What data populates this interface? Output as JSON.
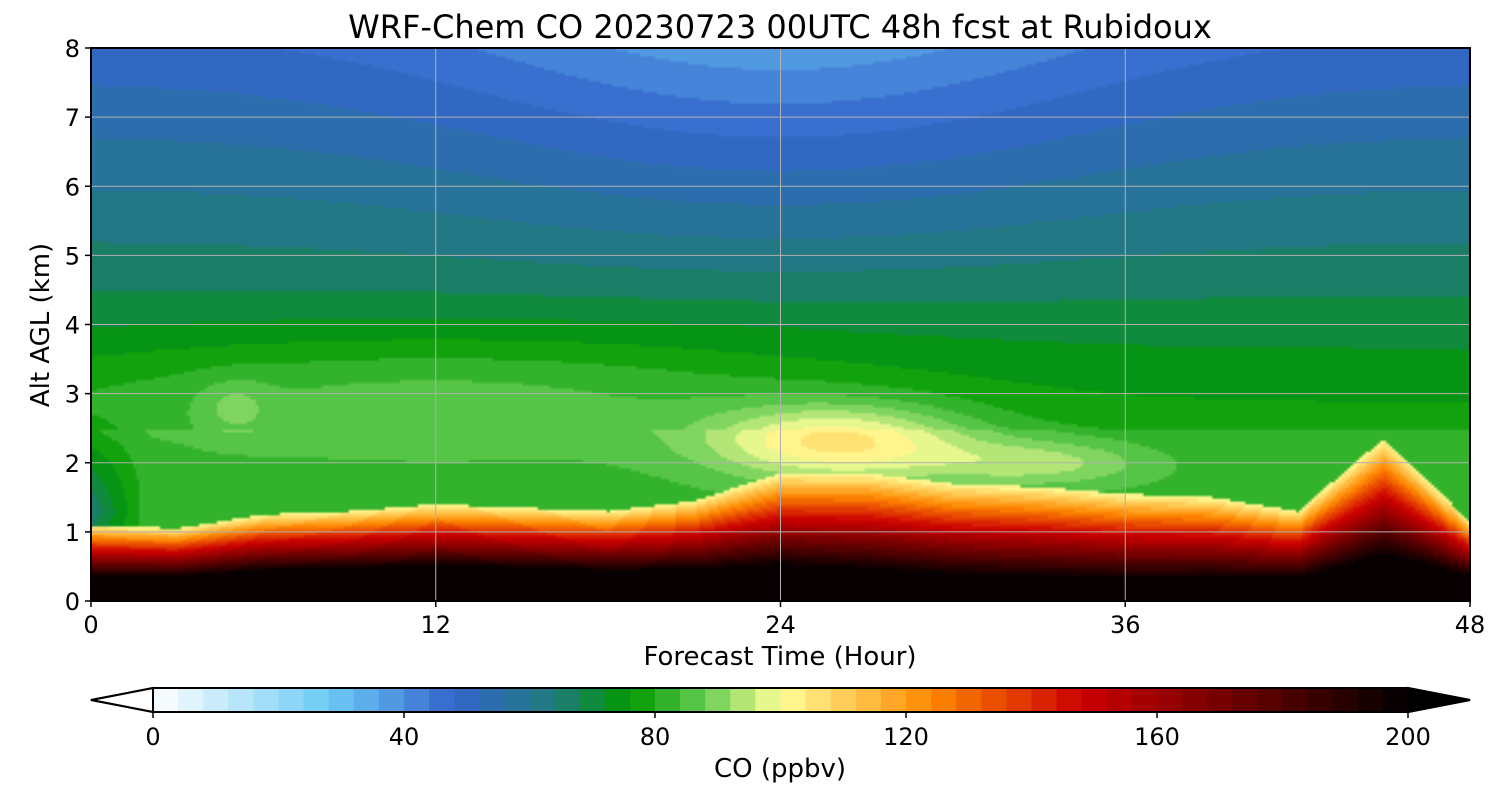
{
  "chart_data": {
    "type": "heatmap",
    "title": "WRF-Chem CO  20230723 00UTC 48h fcst at Rubidoux",
    "xlabel": "Forecast Time (Hour)",
    "ylabel": "Alt AGL (km)",
    "xlim": [
      0,
      48
    ],
    "ylim": [
      0,
      8
    ],
    "x_ticks": [
      0,
      12,
      24,
      36,
      48
    ],
    "x_tick_labels": [
      "0",
      "12",
      "24",
      "36",
      "48"
    ],
    "y_ticks": [
      0,
      1,
      2,
      3,
      4,
      5,
      6,
      7,
      8
    ],
    "y_tick_labels": [
      "0",
      "1",
      "2",
      "3",
      "4",
      "5",
      "6",
      "7",
      "8"
    ],
    "grid": true,
    "colorbar": {
      "label": "CO  (ppbv)",
      "range": [
        0,
        200
      ],
      "ticks": [
        0,
        40,
        80,
        120,
        160,
        200
      ],
      "tick_labels": [
        "0",
        "40",
        "80",
        "120",
        "160",
        "200"
      ],
      "extend": "both",
      "levels_step": 4,
      "colormap_stops": [
        {
          "value": 0,
          "color": "#ffffff"
        },
        {
          "value": 28,
          "color": "#6ecbf5"
        },
        {
          "value": 48,
          "color": "#3366cc"
        },
        {
          "value": 64,
          "color": "#1f7a7a"
        },
        {
          "value": 76,
          "color": "#009900"
        },
        {
          "value": 88,
          "color": "#66cc55"
        },
        {
          "value": 100,
          "color": "#ffff99"
        },
        {
          "value": 124,
          "color": "#ff8800"
        },
        {
          "value": 148,
          "color": "#cc0000"
        },
        {
          "value": 200,
          "color": "#000000"
        }
      ]
    },
    "field_description_points": {
      "hours": [
        0,
        3,
        6,
        9,
        12,
        15,
        18,
        21,
        24,
        27,
        30,
        33,
        36,
        39,
        42,
        45,
        48
      ],
      "boundary_layer_top_km": [
        0.75,
        0.7,
        0.9,
        0.95,
        1.05,
        1.0,
        0.95,
        1.1,
        1.5,
        1.5,
        1.35,
        1.3,
        1.2,
        1.15,
        0.95,
        2.0,
        0.8
      ],
      "upper_min_CO_ppbv": 50,
      "surface_max_CO_ppbv": 200,
      "elevated_plume_center_hour": 26,
      "elevated_plume_center_km": 2.3,
      "elevated_plume_CO_ppbv": 105
    }
  }
}
